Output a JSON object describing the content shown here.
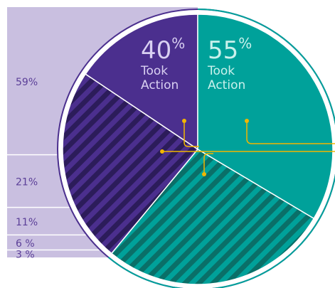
{
  "chart_data": [
    {
      "type": "stacked-bar",
      "values": [
        59,
        21,
        11,
        6,
        3
      ],
      "value_labels": [
        "59%",
        "21%",
        "11%",
        "6 %",
        "3 %"
      ],
      "color": "#c9bfe0",
      "label_color": "#5b3f98"
    },
    {
      "type": "split-pie",
      "unit": "%",
      "groups": [
        {
          "label": "Took Action",
          "share": 39,
          "value": 40,
          "color": "#4b2f8e",
          "stripe": "#2c1c5a",
          "text_color": "#d9d0f2"
        },
        {
          "label": "Took Action",
          "share": 61,
          "value": 55,
          "color": "#00a19a",
          "stripe": "#0a6f68",
          "text_color": "#c9f1ec"
        }
      ]
    }
  ]
}
